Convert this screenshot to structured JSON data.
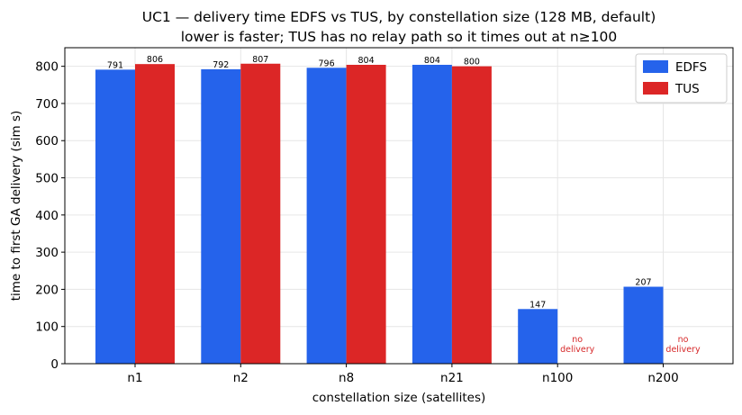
{
  "chart_data": {
    "type": "bar",
    "title": "UC1 — delivery time EDFS vs TUS, by constellation size (128 MB, default)",
    "subtitle": "lower is faster; TUS has no relay path so it times out at n≥100",
    "xlabel": "constellation size (satellites)",
    "ylabel": "time to first GA delivery (sim s)",
    "categories": [
      "n1",
      "n2",
      "n8",
      "n21",
      "n100",
      "n200"
    ],
    "series": [
      {
        "name": "EDFS",
        "color": "#2563eb",
        "values": [
          791,
          792,
          796,
          804,
          147,
          207
        ]
      },
      {
        "name": "TUS",
        "color": "#dc2626",
        "values": [
          806,
          807,
          804,
          800,
          null,
          null
        ]
      }
    ],
    "missing_label": "no delivery",
    "ylim": [
      0,
      850
    ],
    "yticks": [
      0,
      100,
      200,
      300,
      400,
      500,
      600,
      700,
      800
    ],
    "grid": true,
    "legend_position": "top-right"
  }
}
